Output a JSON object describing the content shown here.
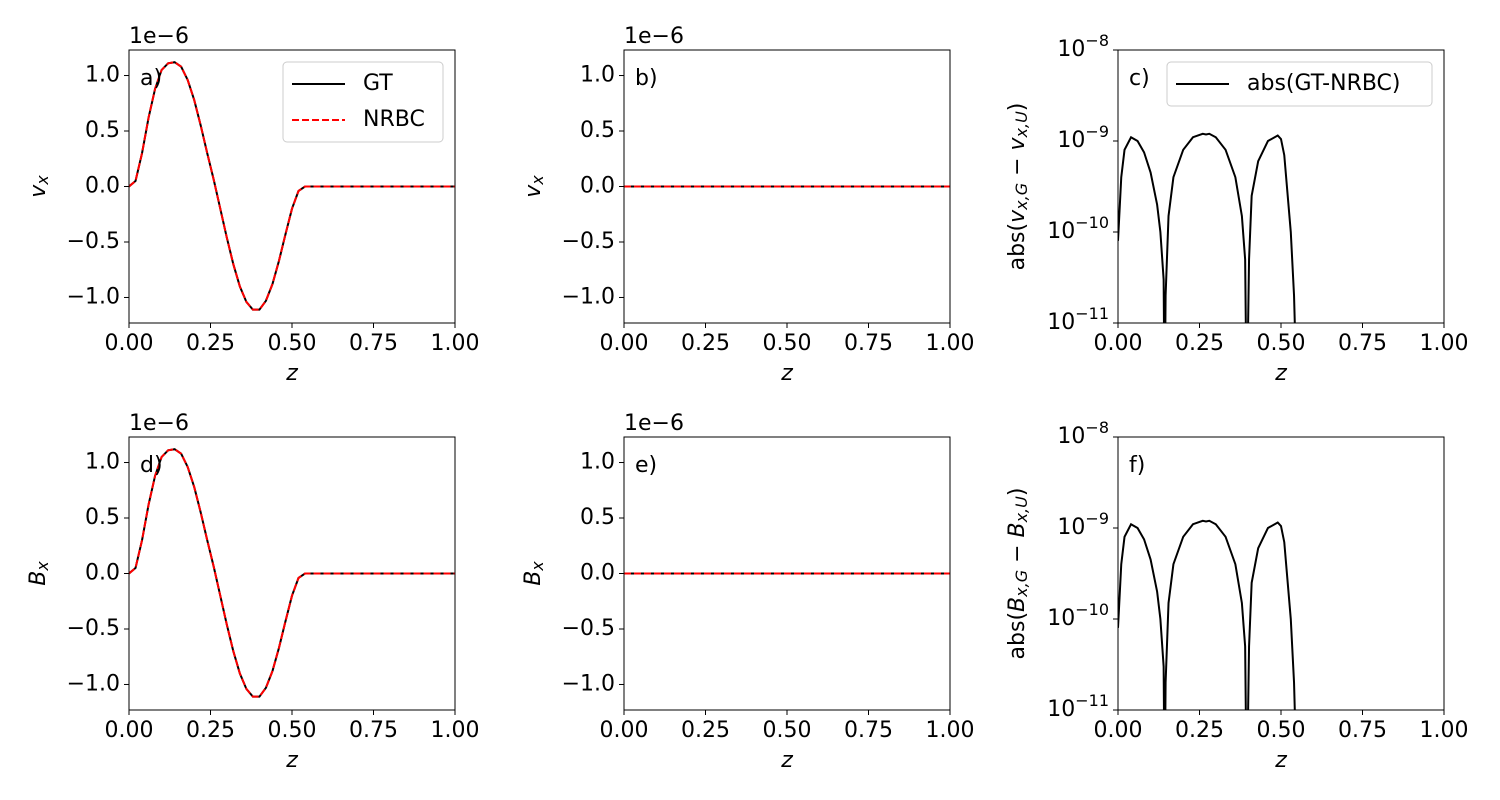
{
  "chart_data": [
    {
      "type": "line",
      "panel_label": "a)",
      "offset_text": "1e−6",
      "ylabel": [
        {
          "text": "v",
          "style": "italic"
        },
        {
          "text": "x",
          "style": "sub"
        }
      ],
      "xlabel": "z",
      "x": [
        0,
        0.02,
        0.04,
        0.06,
        0.08,
        0.1,
        0.12,
        0.14,
        0.16,
        0.18,
        0.2,
        0.22,
        0.24,
        0.26,
        0.28,
        0.3,
        0.32,
        0.34,
        0.36,
        0.38,
        0.4,
        0.42,
        0.44,
        0.46,
        0.48,
        0.5,
        0.52,
        0.54,
        0.6,
        0.8,
        1.0
      ],
      "series": [
        {
          "name": "GT",
          "color": "#000000",
          "dash": "solid",
          "values": [
            0,
            0.05,
            0.3,
            0.62,
            0.88,
            1.05,
            1.11,
            1.12,
            1.08,
            0.96,
            0.78,
            0.55,
            0.3,
            0.06,
            -0.2,
            -0.46,
            -0.7,
            -0.9,
            -1.04,
            -1.11,
            -1.11,
            -1.03,
            -0.88,
            -0.67,
            -0.43,
            -0.2,
            -0.04,
            0,
            0,
            0,
            0
          ]
        },
        {
          "name": "NRBC",
          "color": "#ff0000",
          "dash": "dashed",
          "values": [
            0,
            0.05,
            0.3,
            0.62,
            0.88,
            1.05,
            1.11,
            1.12,
            1.08,
            0.96,
            0.78,
            0.55,
            0.3,
            0.06,
            -0.2,
            -0.46,
            -0.7,
            -0.9,
            -1.04,
            -1.11,
            -1.11,
            -1.03,
            -0.88,
            -0.67,
            -0.43,
            -0.2,
            -0.04,
            0,
            0,
            0,
            0
          ]
        }
      ],
      "xlim": [
        0,
        1
      ],
      "ylim": [
        -1.23,
        1.23
      ],
      "xticks": [
        {
          "value": 0,
          "label": "0.00"
        },
        {
          "value": 0.25,
          "label": "0.25"
        },
        {
          "value": 0.5,
          "label": "0.50"
        },
        {
          "value": 0.75,
          "label": "0.75"
        },
        {
          "value": 1,
          "label": "1.00"
        }
      ],
      "yticks": [
        {
          "value": -1,
          "label": "−1.0"
        },
        {
          "value": -0.5,
          "label": "−0.5"
        },
        {
          "value": 0,
          "label": "0.0"
        },
        {
          "value": 0.5,
          "label": "0.5"
        },
        {
          "value": 1,
          "label": "1.0"
        }
      ],
      "legend": "upper right"
    },
    {
      "type": "line",
      "panel_label": "b)",
      "offset_text": "1e−6",
      "ylabel": [
        {
          "text": "v",
          "style": "italic"
        },
        {
          "text": "x",
          "style": "sub"
        }
      ],
      "xlabel": "z",
      "x": [
        0,
        1
      ],
      "series": [
        {
          "color": "#000000",
          "dash": "solid",
          "values": [
            0,
            0
          ]
        },
        {
          "color": "#ff0000",
          "dash": "dashed",
          "values": [
            0,
            0
          ]
        }
      ],
      "xlim": [
        0,
        1
      ],
      "ylim": [
        -1.23,
        1.23
      ],
      "xticks": [
        {
          "value": 0,
          "label": "0.00"
        },
        {
          "value": 0.25,
          "label": "0.25"
        },
        {
          "value": 0.5,
          "label": "0.50"
        },
        {
          "value": 0.75,
          "label": "0.75"
        },
        {
          "value": 1,
          "label": "1.00"
        }
      ],
      "yticks": [
        {
          "value": -1,
          "label": "−1.0"
        },
        {
          "value": -0.5,
          "label": "−0.5"
        },
        {
          "value": 0,
          "label": "0.0"
        },
        {
          "value": 0.5,
          "label": "0.5"
        },
        {
          "value": 1,
          "label": "1.0"
        }
      ]
    },
    {
      "type": "line",
      "panel_label": "c)",
      "yscale": "log",
      "ylabel": [
        {
          "text": "abs(",
          "style": "roman"
        },
        {
          "text": "v",
          "style": "italic"
        },
        {
          "text": "x,G",
          "style": "sub"
        },
        {
          "text": " − ",
          "style": "roman"
        },
        {
          "text": "v",
          "style": "italic"
        },
        {
          "text": "x,U",
          "style": "sub"
        },
        {
          "text": ")",
          "style": "roman"
        }
      ],
      "xlabel": "z",
      "x": [
        0,
        0.01,
        0.02,
        0.04,
        0.06,
        0.08,
        0.1,
        0.12,
        0.13,
        0.14,
        0.143,
        0.146,
        0.155,
        0.17,
        0.2,
        0.23,
        0.26,
        0.27,
        0.28,
        0.3,
        0.33,
        0.36,
        0.38,
        0.39,
        0.395,
        0.402,
        0.41,
        0.43,
        0.46,
        0.49,
        0.5,
        0.51,
        0.53,
        0.54,
        0.55
      ],
      "series": [
        {
          "name": "abs(GT-NRBC)",
          "color": "#000000",
          "dash": "solid",
          "values": [
            8e-11,
            4e-10,
            8e-10,
            1.1e-09,
            1e-09,
            7.5e-10,
            4.5e-10,
            2e-10,
            1e-10,
            3e-11,
            1e-12,
            2e-11,
            1.5e-10,
            4e-10,
            8e-10,
            1.1e-09,
            1.2e-09,
            1.18e-09,
            1.2e-09,
            1.1e-09,
            8e-10,
            4e-10,
            1.5e-10,
            5e-11,
            1e-12,
            5e-11,
            2.5e-10,
            6e-10,
            1e-09,
            1.15e-09,
            1.05e-09,
            7e-10,
            1e-10,
            2e-11,
            1e-12
          ]
        }
      ],
      "xlim": [
        0,
        1
      ],
      "ylim": [
        1e-11,
        1e-08
      ],
      "xticks": [
        {
          "value": 0,
          "label": "0.00"
        },
        {
          "value": 0.25,
          "label": "0.25"
        },
        {
          "value": 0.5,
          "label": "0.50"
        },
        {
          "value": 0.75,
          "label": "0.75"
        },
        {
          "value": 1,
          "label": "1.00"
        }
      ],
      "yticks": [
        {
          "value": 1e-11,
          "label": "10",
          "power": "−11"
        },
        {
          "value": 1e-10,
          "label": "10",
          "power": "−10"
        },
        {
          "value": 1e-09,
          "label": "10",
          "power": "−9"
        },
        {
          "value": 1e-08,
          "label": "10",
          "power": "−8"
        }
      ],
      "legend": "upper right"
    },
    {
      "type": "line",
      "panel_label": "d)",
      "offset_text": "1e−6",
      "ylabel": [
        {
          "text": "B",
          "style": "italic"
        },
        {
          "text": "x",
          "style": "sub"
        }
      ],
      "xlabel": "z",
      "x": [
        0,
        0.02,
        0.04,
        0.06,
        0.08,
        0.1,
        0.12,
        0.14,
        0.16,
        0.18,
        0.2,
        0.22,
        0.24,
        0.26,
        0.28,
        0.3,
        0.32,
        0.34,
        0.36,
        0.38,
        0.4,
        0.42,
        0.44,
        0.46,
        0.48,
        0.5,
        0.52,
        0.54,
        0.6,
        0.8,
        1.0
      ],
      "series": [
        {
          "color": "#000000",
          "dash": "solid",
          "values": [
            0,
            0.05,
            0.3,
            0.62,
            0.88,
            1.05,
            1.11,
            1.12,
            1.08,
            0.96,
            0.78,
            0.55,
            0.3,
            0.06,
            -0.2,
            -0.46,
            -0.7,
            -0.9,
            -1.04,
            -1.11,
            -1.11,
            -1.03,
            -0.88,
            -0.67,
            -0.43,
            -0.2,
            -0.04,
            0,
            0,
            0,
            0
          ]
        },
        {
          "color": "#ff0000",
          "dash": "dashed",
          "values": [
            0,
            0.05,
            0.3,
            0.62,
            0.88,
            1.05,
            1.11,
            1.12,
            1.08,
            0.96,
            0.78,
            0.55,
            0.3,
            0.06,
            -0.2,
            -0.46,
            -0.7,
            -0.9,
            -1.04,
            -1.11,
            -1.11,
            -1.03,
            -0.88,
            -0.67,
            -0.43,
            -0.2,
            -0.04,
            0,
            0,
            0,
            0
          ]
        }
      ],
      "xlim": [
        0,
        1
      ],
      "ylim": [
        -1.23,
        1.23
      ],
      "xticks": [
        {
          "value": 0,
          "label": "0.00"
        },
        {
          "value": 0.25,
          "label": "0.25"
        },
        {
          "value": 0.5,
          "label": "0.50"
        },
        {
          "value": 0.75,
          "label": "0.75"
        },
        {
          "value": 1,
          "label": "1.00"
        }
      ],
      "yticks": [
        {
          "value": -1,
          "label": "−1.0"
        },
        {
          "value": -0.5,
          "label": "−0.5"
        },
        {
          "value": 0,
          "label": "0.0"
        },
        {
          "value": 0.5,
          "label": "0.5"
        },
        {
          "value": 1,
          "label": "1.0"
        }
      ]
    },
    {
      "type": "line",
      "panel_label": "e)",
      "offset_text": "1e−6",
      "ylabel": [
        {
          "text": "B",
          "style": "italic"
        },
        {
          "text": "x",
          "style": "sub"
        }
      ],
      "xlabel": "z",
      "x": [
        0,
        1
      ],
      "series": [
        {
          "color": "#000000",
          "dash": "solid",
          "values": [
            0,
            0
          ]
        },
        {
          "color": "#ff0000",
          "dash": "dashed",
          "values": [
            0,
            0
          ]
        }
      ],
      "xlim": [
        0,
        1
      ],
      "ylim": [
        -1.23,
        1.23
      ],
      "xticks": [
        {
          "value": 0,
          "label": "0.00"
        },
        {
          "value": 0.25,
          "label": "0.25"
        },
        {
          "value": 0.5,
          "label": "0.50"
        },
        {
          "value": 0.75,
          "label": "0.75"
        },
        {
          "value": 1,
          "label": "1.00"
        }
      ],
      "yticks": [
        {
          "value": -1,
          "label": "−1.0"
        },
        {
          "value": -0.5,
          "label": "−0.5"
        },
        {
          "value": 0,
          "label": "0.0"
        },
        {
          "value": 0.5,
          "label": "0.5"
        },
        {
          "value": 1,
          "label": "1.0"
        }
      ]
    },
    {
      "type": "line",
      "panel_label": "f)",
      "yscale": "log",
      "ylabel": [
        {
          "text": "abs(",
          "style": "roman"
        },
        {
          "text": "B",
          "style": "italic"
        },
        {
          "text": "x,G",
          "style": "sub"
        },
        {
          "text": " − ",
          "style": "roman"
        },
        {
          "text": "B",
          "style": "italic"
        },
        {
          "text": "x,U",
          "style": "sub"
        },
        {
          "text": ")",
          "style": "roman"
        }
      ],
      "xlabel": "z",
      "x": [
        0,
        0.01,
        0.02,
        0.04,
        0.06,
        0.08,
        0.1,
        0.12,
        0.13,
        0.14,
        0.143,
        0.146,
        0.155,
        0.17,
        0.2,
        0.23,
        0.26,
        0.27,
        0.28,
        0.3,
        0.33,
        0.36,
        0.38,
        0.39,
        0.395,
        0.402,
        0.41,
        0.43,
        0.46,
        0.49,
        0.5,
        0.51,
        0.53,
        0.54,
        0.55
      ],
      "series": [
        {
          "color": "#000000",
          "dash": "solid",
          "values": [
            8e-11,
            4e-10,
            8e-10,
            1.1e-09,
            1e-09,
            7.5e-10,
            4.5e-10,
            2e-10,
            1e-10,
            3e-11,
            1e-12,
            2e-11,
            1.5e-10,
            4e-10,
            8e-10,
            1.1e-09,
            1.2e-09,
            1.18e-09,
            1.2e-09,
            1.1e-09,
            8e-10,
            4e-10,
            1.5e-10,
            5e-11,
            1e-12,
            5e-11,
            2.5e-10,
            6e-10,
            1e-09,
            1.15e-09,
            1.05e-09,
            7e-10,
            1e-10,
            2e-11,
            1e-12
          ]
        }
      ],
      "xlim": [
        0,
        1
      ],
      "ylim": [
        1e-11,
        1e-08
      ],
      "xticks": [
        {
          "value": 0,
          "label": "0.00"
        },
        {
          "value": 0.25,
          "label": "0.25"
        },
        {
          "value": 0.5,
          "label": "0.50"
        },
        {
          "value": 0.75,
          "label": "0.75"
        },
        {
          "value": 1,
          "label": "1.00"
        }
      ],
      "yticks": [
        {
          "value": 1e-11,
          "label": "10",
          "power": "−11"
        },
        {
          "value": 1e-10,
          "label": "10",
          "power": "−10"
        },
        {
          "value": 1e-09,
          "label": "10",
          "power": "−9"
        },
        {
          "value": 1e-08,
          "label": "10",
          "power": "−8"
        }
      ]
    }
  ]
}
